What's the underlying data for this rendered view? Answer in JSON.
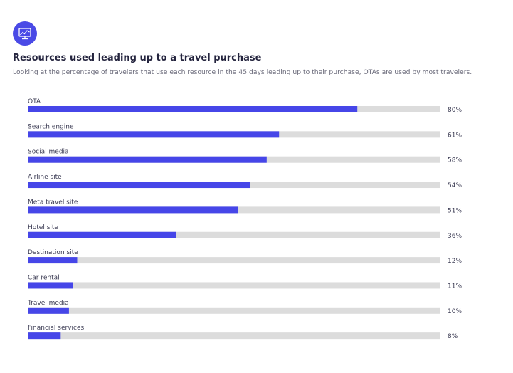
{
  "header": {
    "icon": "chart-monitor-icon",
    "title": "Resources used leading up to a travel purchase",
    "subtitle": "Looking at the percentage of travelers that use each resource in the 45 days leading up to their purchase, OTAs are used by most travelers."
  },
  "colors": {
    "accent": "#4646e8",
    "track": "#dcdcdc",
    "icon_bg": "#4a4ae6"
  },
  "chart_data": {
    "type": "bar",
    "orientation": "horizontal",
    "categories": [
      "OTA",
      "Search engine",
      "Social media",
      "Airline site",
      "Meta travel site",
      "Hotel site",
      "Destination site",
      "Car rental",
      "Travel media",
      "Financial services"
    ],
    "values": [
      80,
      61,
      58,
      54,
      51,
      36,
      12,
      11,
      10,
      8
    ],
    "value_labels": [
      "80%",
      "61%",
      "58%",
      "54%",
      "51%",
      "36%",
      "12%",
      "11%",
      "10%",
      "8%"
    ],
    "xlim": [
      0,
      100
    ],
    "grid": false,
    "legend": false
  }
}
